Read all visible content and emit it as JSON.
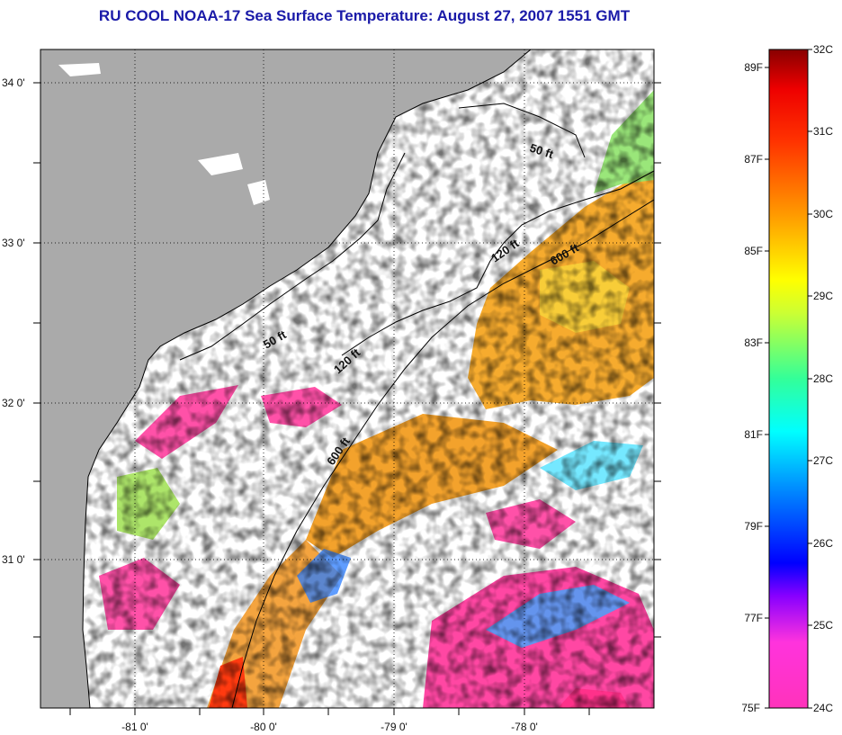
{
  "title": "RU COOL  NOAA-17  Sea Surface Temperature:  August 27, 2007 1551 GMT",
  "map": {
    "lon_ticks": [
      "-81 0'",
      "-80 0'",
      "-79 0'",
      "-78 0'"
    ],
    "lat_ticks": [
      "34 0'",
      "33 0'",
      "32 0'",
      "31 0'"
    ],
    "contours": [
      "50 ft",
      "120 ft",
      "600 ft",
      "50 ft",
      "120 ft",
      "600 ft"
    ],
    "colors": {
      "land": "#aaaaaa",
      "water_nodata": "#ffffff",
      "coastline": "#000000",
      "warm_water": "#f5a623",
      "cool_water": "#ff3399"
    }
  },
  "colorbar": {
    "fahrenheit_labels": [
      "89F",
      "87F",
      "85F",
      "83F",
      "81F",
      "79F",
      "77F",
      "75F"
    ],
    "celsius_labels": [
      "32C",
      "31C",
      "30C",
      "29C",
      "28C",
      "27C",
      "26C",
      "25C",
      "24C"
    ],
    "range_celsius": [
      24,
      32
    ],
    "stops": [
      "#ff33bb",
      "#8800ff",
      "#0000ff",
      "#0088ff",
      "#00ffff",
      "#66ff66",
      "#ffff00",
      "#ff9900",
      "#ff0000",
      "#880000"
    ]
  }
}
